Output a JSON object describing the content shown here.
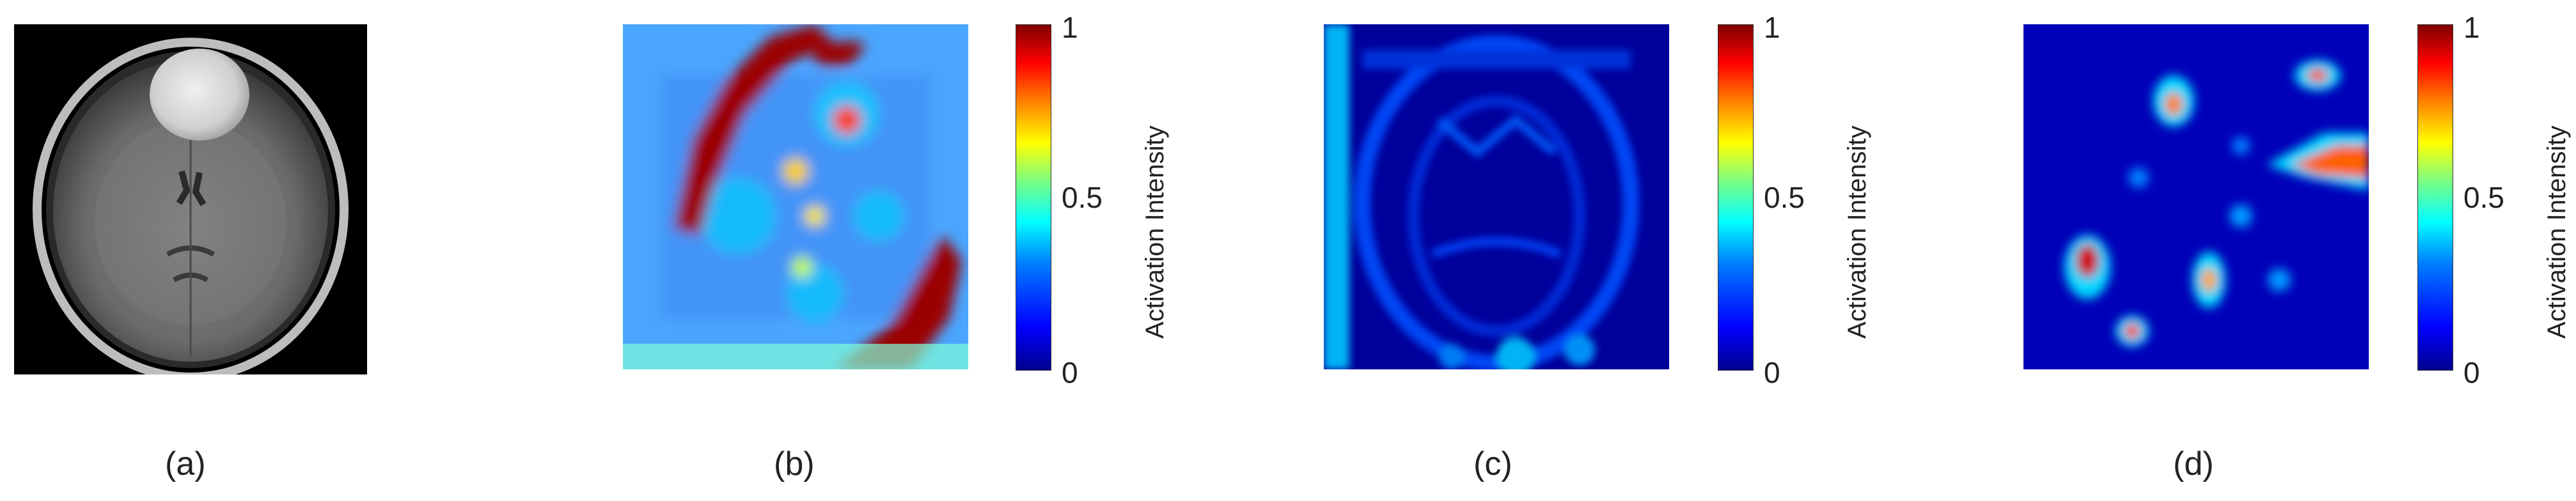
{
  "panels": {
    "a": {
      "caption": "(a)"
    },
    "b": {
      "caption": "(b)"
    },
    "c": {
      "caption": "(c)"
    },
    "d": {
      "caption": "(d)"
    }
  },
  "colorbar": {
    "label": "Activation Intensity",
    "ticks": [
      "1",
      "0.5",
      "0"
    ],
    "colormap": [
      "#00008f",
      "#0000ff",
      "#007fff",
      "#00ffff",
      "#7fff7f",
      "#ffff00",
      "#ff7f00",
      "#ff0000",
      "#800000"
    ]
  }
}
